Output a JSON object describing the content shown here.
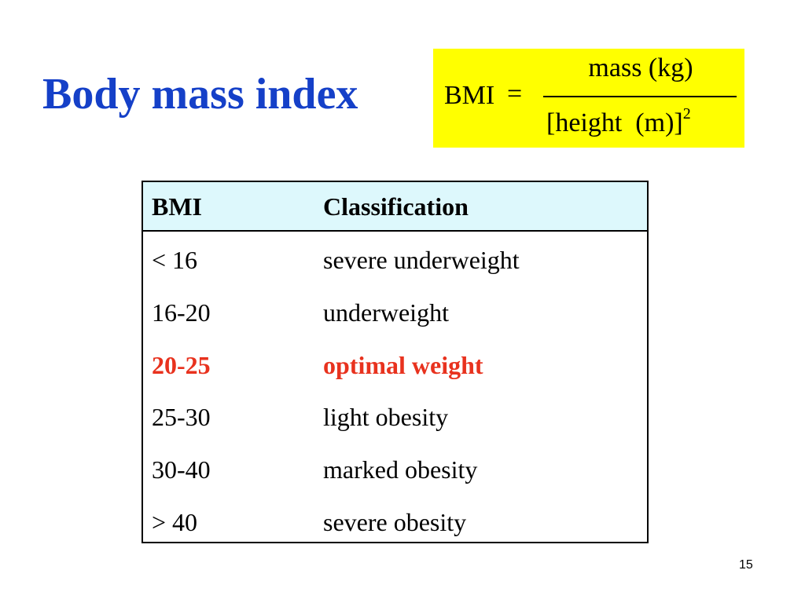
{
  "slide": {
    "title": "Body mass index",
    "page_number": "15"
  },
  "formula": {
    "lhs": "BMI",
    "equals": "=",
    "numerator": "mass (kg)",
    "denominator": "[height  (m)]",
    "exponent": "2"
  },
  "table": {
    "headers": [
      "BMI",
      "Classification"
    ],
    "rows": [
      {
        "range": "< 16",
        "classification": "severe underweight"
      },
      {
        "range": "16-20",
        "classification": "underweight"
      },
      {
        "range": "20-25",
        "classification": "optimal weight"
      },
      {
        "range": "25-30",
        "classification": "light obesity"
      },
      {
        "range": "30-40",
        "classification": "marked obesity"
      },
      {
        "range": "> 40",
        "classification": "severe obesity"
      }
    ]
  },
  "colors": {
    "title": "#1540c8",
    "formula_background": "#ffff00",
    "header_background": "#ddf8fc",
    "highlight": "#e8321e"
  }
}
